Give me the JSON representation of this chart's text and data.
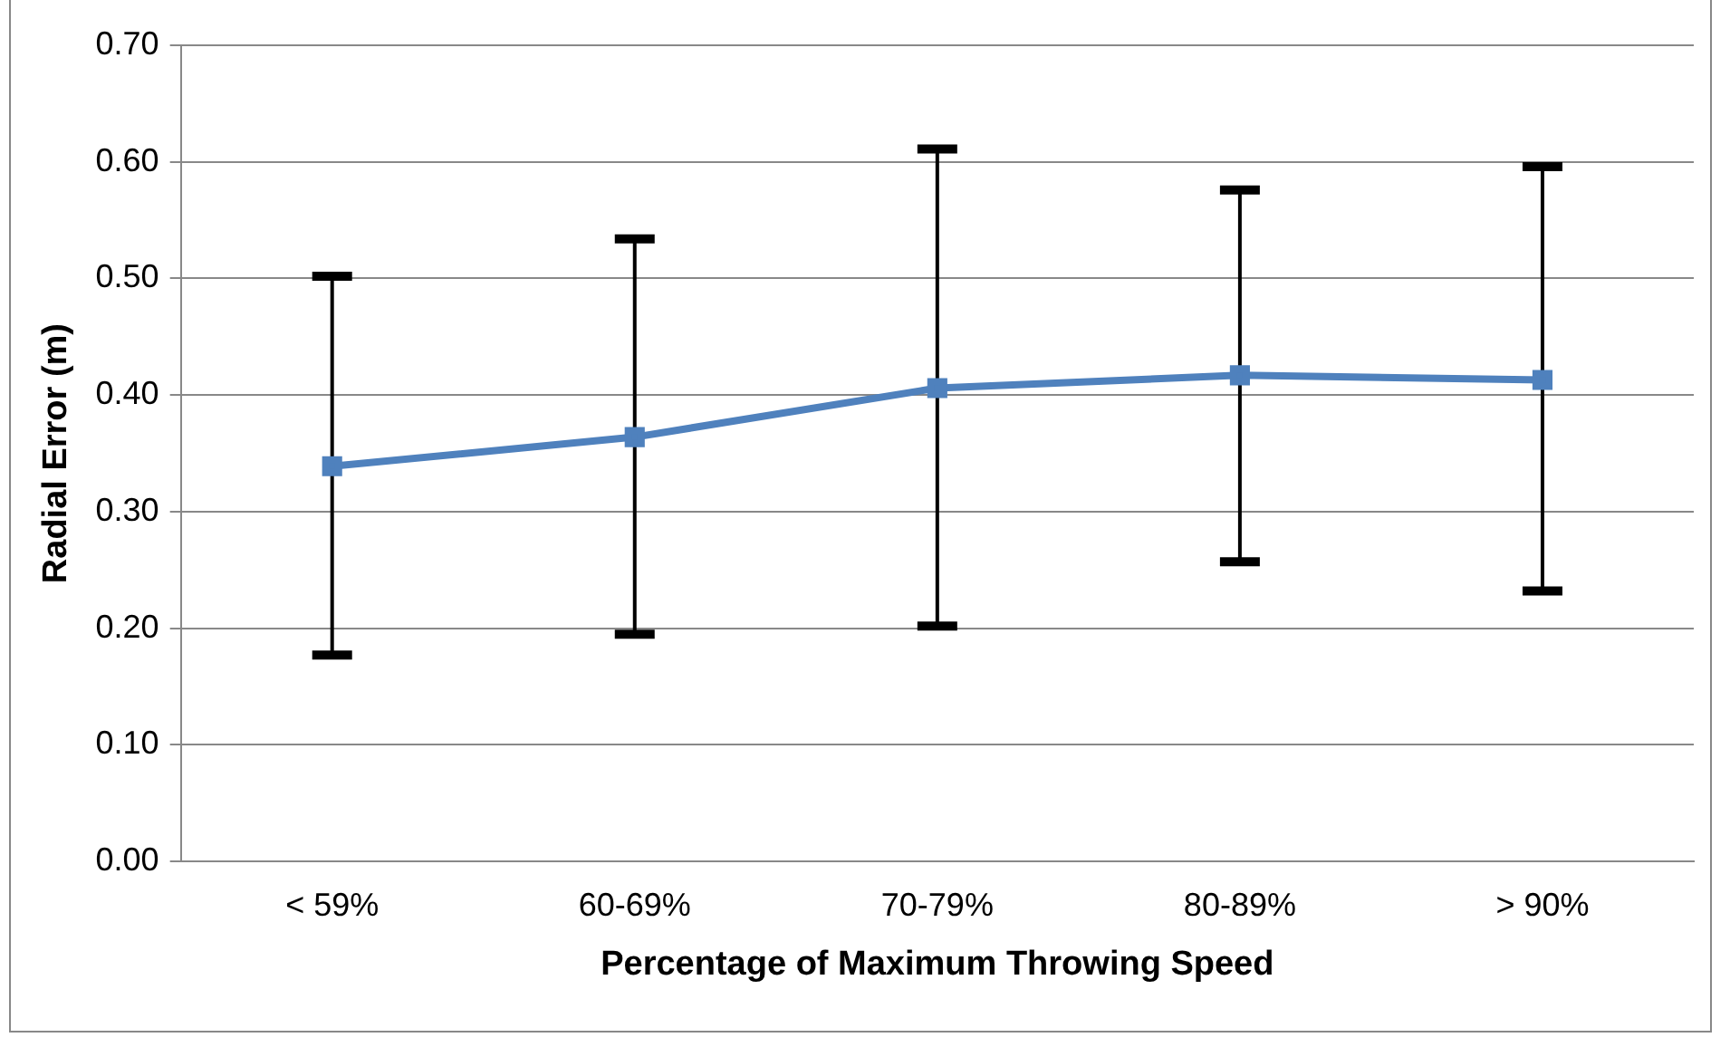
{
  "chart_data": {
    "type": "line",
    "xlabel": "Percentage of Maximum Throwing Speed",
    "ylabel": "Radial Error (m)",
    "categories": [
      "< 59%",
      "60-69%",
      "70-79%",
      "80-89%",
      "> 90%"
    ],
    "series": [
      {
        "color": "#4f81bd",
        "values": [
          0.339,
          0.364,
          0.406,
          0.417,
          0.413
        ],
        "errors": [
          [
            0.177,
            0.502
          ],
          [
            0.195,
            0.534
          ],
          [
            0.202,
            0.611
          ],
          [
            0.257,
            0.576
          ],
          [
            0.232,
            0.596
          ]
        ]
      }
    ],
    "ylim": [
      0,
      0.7
    ],
    "yticks": [
      {
        "value": 0,
        "label": "0.00"
      },
      {
        "value": 0.1,
        "label": "0.10"
      },
      {
        "value": 0.2,
        "label": "0.20"
      },
      {
        "value": 0.3,
        "label": "0.30"
      },
      {
        "value": 0.4,
        "label": "0.40"
      },
      {
        "value": 0.5,
        "label": "0.50"
      },
      {
        "value": 0.6,
        "label": "0.60"
      },
      {
        "value": 0.7,
        "label": "0.70"
      }
    ],
    "grid": "y",
    "legend": false,
    "marker": "square",
    "line_style": "solid"
  }
}
